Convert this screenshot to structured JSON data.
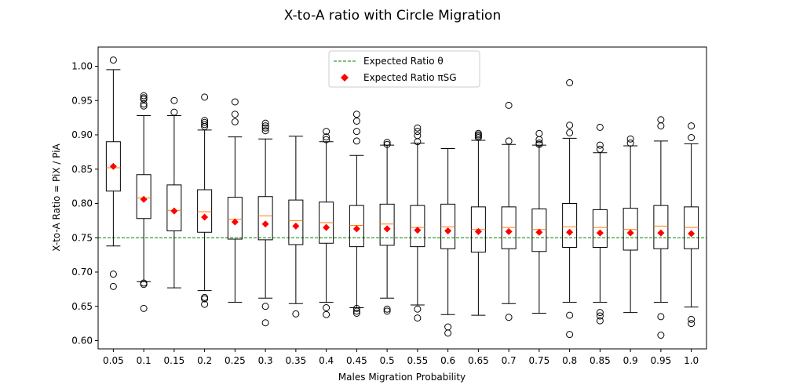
{
  "chart_data": {
    "type": "box",
    "title": "X-to-A ratio with Circle Migration",
    "xlabel": "Males Migration Probability",
    "ylabel": "X-to-A Ratio = PiX / PiA",
    "categories": [
      "0.05",
      "0.1",
      "0.15",
      "0.2",
      "0.25",
      "0.3",
      "0.35",
      "0.4",
      "0.45",
      "0.5",
      "0.55",
      "0.6",
      "0.65",
      "0.7",
      "0.75",
      "0.8",
      "0.85",
      "0.9",
      "0.95",
      "1.0"
    ],
    "ylim": [
      0.588,
      1.028
    ],
    "yticks": [
      0.6,
      0.65,
      0.7,
      0.75,
      0.8,
      0.85,
      0.9,
      0.95,
      1.0
    ],
    "ytick_labels": [
      "0.60",
      "0.65",
      "0.70",
      "0.75",
      "0.80",
      "0.85",
      "0.90",
      "0.95",
      "1.00"
    ],
    "expected_theta": 0.75,
    "grid": false,
    "legend": {
      "position": "top-center",
      "entries": [
        {
          "label": "Expected Ratio θ",
          "kind": "dashed-line",
          "color": "#008000"
        },
        {
          "label": "Expected Ratio πSG",
          "kind": "diamond",
          "color": "#ff0000"
        }
      ]
    },
    "colors": {
      "box": "#000000",
      "median": "#ff7f0e",
      "theta_line": "#008000",
      "pisg": "#ff0000"
    },
    "boxes": [
      {
        "q1": 0.818,
        "median": 0.852,
        "q3": 0.89,
        "whislo": 0.738,
        "whishi": 0.995,
        "fliers": [
          1.009,
          0.697,
          0.679
        ],
        "pisg": 0.854
      },
      {
        "q1": 0.778,
        "median": 0.808,
        "q3": 0.842,
        "whislo": 0.686,
        "whishi": 0.928,
        "fliers": [
          0.957,
          0.954,
          0.952,
          0.945,
          0.942,
          0.684,
          0.682,
          0.647
        ],
        "pisg": 0.806
      },
      {
        "q1": 0.76,
        "median": 0.79,
        "q3": 0.827,
        "whislo": 0.677,
        "whishi": 0.928,
        "fliers": [
          0.95,
          0.933
        ],
        "pisg": 0.789
      },
      {
        "q1": 0.758,
        "median": 0.788,
        "q3": 0.82,
        "whislo": 0.673,
        "whishi": 0.907,
        "fliers": [
          0.955,
          0.921,
          0.918,
          0.915,
          0.912,
          0.663,
          0.661,
          0.653
        ],
        "pisg": 0.78
      },
      {
        "q1": 0.748,
        "median": 0.777,
        "q3": 0.809,
        "whislo": 0.656,
        "whishi": 0.897,
        "fliers": [
          0.948,
          0.93,
          0.919
        ],
        "pisg": 0.773
      },
      {
        "q1": 0.747,
        "median": 0.782,
        "q3": 0.81,
        "whislo": 0.662,
        "whishi": 0.894,
        "fliers": [
          0.917,
          0.913,
          0.91,
          0.906,
          0.65,
          0.626
        ],
        "pisg": 0.77
      },
      {
        "q1": 0.74,
        "median": 0.775,
        "q3": 0.805,
        "whislo": 0.654,
        "whishi": 0.898,
        "fliers": [
          0.639
        ],
        "pisg": 0.767
      },
      {
        "q1": 0.742,
        "median": 0.772,
        "q3": 0.802,
        "whislo": 0.656,
        "whishi": 0.89,
        "fliers": [
          0.905,
          0.897,
          0.893,
          0.648,
          0.638
        ],
        "pisg": 0.765
      },
      {
        "q1": 0.737,
        "median": 0.768,
        "q3": 0.797,
        "whislo": 0.648,
        "whishi": 0.87,
        "fliers": [
          0.93,
          0.92,
          0.905,
          0.891,
          0.647,
          0.643,
          0.64
        ],
        "pisg": 0.763
      },
      {
        "q1": 0.739,
        "median": 0.77,
        "q3": 0.799,
        "whislo": 0.662,
        "whishi": 0.885,
        "fliers": [
          0.889,
          0.886,
          0.646,
          0.643
        ],
        "pisg": 0.763
      },
      {
        "q1": 0.737,
        "median": 0.765,
        "q3": 0.797,
        "whislo": 0.652,
        "whishi": 0.888,
        "fliers": [
          0.91,
          0.905,
          0.899,
          0.89,
          0.646,
          0.633
        ],
        "pisg": 0.761
      },
      {
        "q1": 0.734,
        "median": 0.766,
        "q3": 0.799,
        "whislo": 0.638,
        "whishi": 0.88,
        "fliers": [
          0.62,
          0.611
        ],
        "pisg": 0.76
      },
      {
        "q1": 0.729,
        "median": 0.762,
        "q3": 0.795,
        "whislo": 0.637,
        "whishi": 0.892,
        "fliers": [
          0.902,
          0.9,
          0.898,
          0.896
        ],
        "pisg": 0.759
      },
      {
        "q1": 0.734,
        "median": 0.765,
        "q3": 0.795,
        "whislo": 0.654,
        "whishi": 0.886,
        "fliers": [
          0.943,
          0.891,
          0.634
        ],
        "pisg": 0.759
      },
      {
        "q1": 0.73,
        "median": 0.762,
        "q3": 0.792,
        "whislo": 0.64,
        "whishi": 0.885,
        "fliers": [
          0.902,
          0.893,
          0.888,
          0.886
        ],
        "pisg": 0.758
      },
      {
        "q1": 0.736,
        "median": 0.766,
        "q3": 0.8,
        "whislo": 0.656,
        "whishi": 0.895,
        "fliers": [
          0.976,
          0.914,
          0.903,
          0.637,
          0.609
        ],
        "pisg": 0.758
      },
      {
        "q1": 0.736,
        "median": 0.765,
        "q3": 0.791,
        "whislo": 0.656,
        "whishi": 0.874,
        "fliers": [
          0.911,
          0.885,
          0.879,
          0.641,
          0.636,
          0.629
        ],
        "pisg": 0.757
      },
      {
        "q1": 0.732,
        "median": 0.762,
        "q3": 0.793,
        "whislo": 0.641,
        "whishi": 0.884,
        "fliers": [
          0.894,
          0.888
        ],
        "pisg": 0.757
      },
      {
        "q1": 0.734,
        "median": 0.767,
        "q3": 0.797,
        "whislo": 0.656,
        "whishi": 0.891,
        "fliers": [
          0.922,
          0.913,
          0.635,
          0.608
        ],
        "pisg": 0.757
      },
      {
        "q1": 0.734,
        "median": 0.765,
        "q3": 0.795,
        "whislo": 0.649,
        "whishi": 0.887,
        "fliers": [
          0.913,
          0.896,
          0.631,
          0.625
        ],
        "pisg": 0.756
      }
    ]
  }
}
